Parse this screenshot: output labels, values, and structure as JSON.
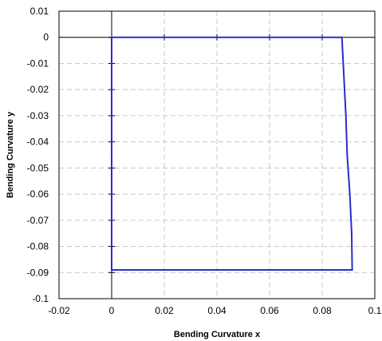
{
  "chart_data": {
    "type": "line",
    "xlabel": "Bending Curvature x",
    "ylabel": "Bending Curvature y",
    "xlim": [
      -0.02,
      0.1
    ],
    "ylim": [
      -0.1,
      0.01
    ],
    "x_ticks": [
      -0.02,
      0,
      0.02,
      0.04,
      0.06,
      0.08,
      0.1
    ],
    "y_ticks": [
      0.01,
      0,
      -0.01,
      -0.02,
      -0.03,
      -0.04,
      -0.05,
      -0.06,
      -0.07,
      -0.08,
      -0.09,
      -0.1
    ],
    "x_tick_labels": [
      "-0.02",
      "0",
      "0.02",
      "0.04",
      "0.06",
      "0.08",
      "0.1"
    ],
    "y_tick_labels": [
      "0.01",
      "0",
      "-0.01",
      "-0.02",
      "-0.03",
      "-0.04",
      "-0.05",
      "-0.06",
      "-0.07",
      "-0.08",
      "-0.09",
      "-0.1"
    ],
    "grid": true,
    "grid_style": "dashed",
    "colors": {
      "series": "#2b2bcc",
      "zero_axis": "#000000",
      "frame": "#000000",
      "grid": "#c8c8c8"
    },
    "series": [
      {
        "x": [
          0,
          0.0875,
          0.088,
          0.0885,
          0.089,
          0.0895,
          0.0905,
          0.0912,
          0.0914,
          0.047,
          0,
          0,
          0
        ],
        "y": [
          0,
          0,
          -0.01,
          -0.02,
          -0.03,
          -0.045,
          -0.06,
          -0.075,
          -0.089,
          -0.089,
          -0.089,
          -0.045,
          0
        ]
      }
    ]
  }
}
